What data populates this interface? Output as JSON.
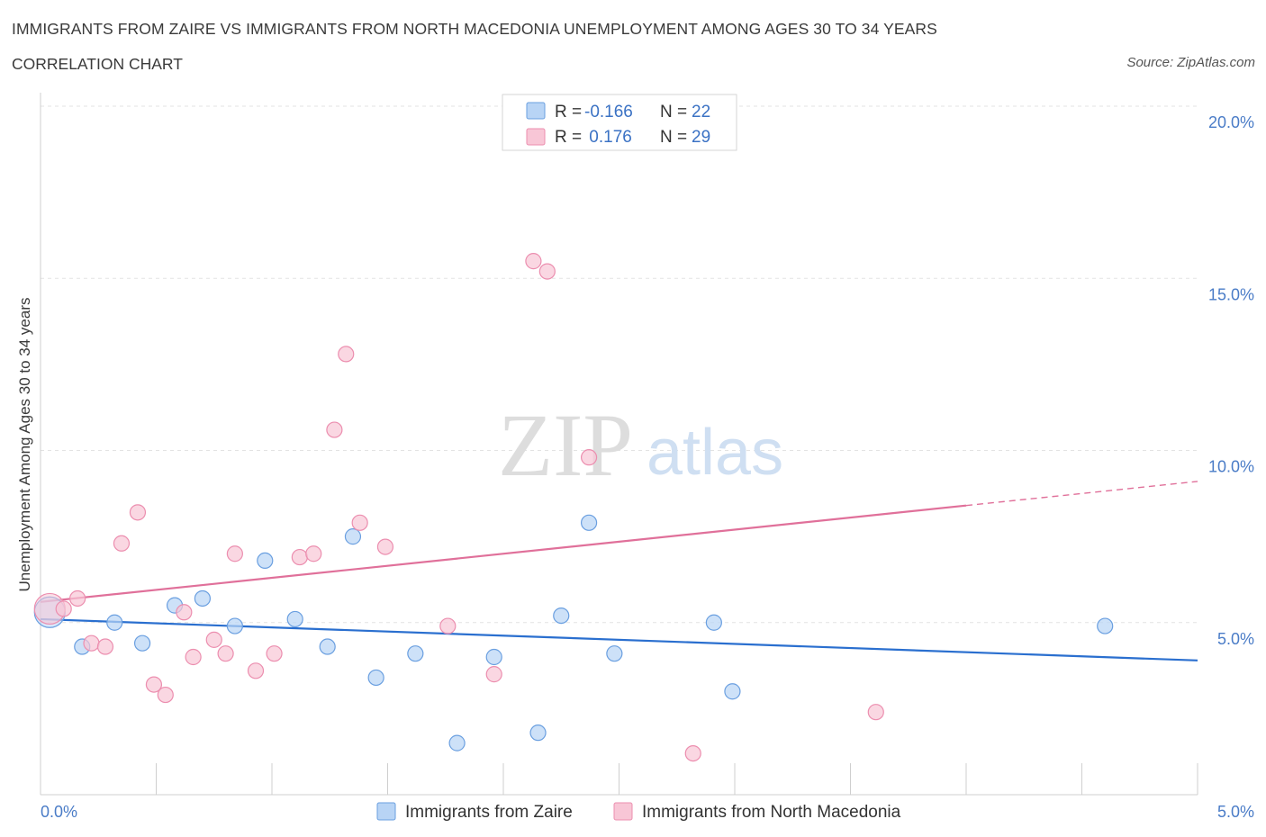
{
  "header": {
    "title": "IMMIGRANTS FROM ZAIRE VS IMMIGRANTS FROM NORTH MACEDONIA UNEMPLOYMENT AMONG AGES 30 TO 34 YEARS",
    "subtitle": "CORRELATION CHART",
    "source": "Source: ZipAtlas.com"
  },
  "watermark": {
    "zip": "ZIP",
    "atlas": "atlas"
  },
  "colors": {
    "zaire_fill": "#b8d4f5",
    "zaire_stroke": "#6a9fe0",
    "zaire_line": "#2a6fcf",
    "macedonia_fill": "#f8c6d6",
    "macedonia_stroke": "#ec8eaf",
    "macedonia_line": "#e0709a",
    "grid": "#e3e3e3",
    "tick_label": "#4a7cc7"
  },
  "legend": {
    "rows": [
      {
        "r_label": "R =",
        "r_value": "-0.166",
        "n_label": "N =",
        "n_value": "22"
      },
      {
        "r_label": "R =",
        "r_value": " 0.176",
        "n_label": "N =",
        "n_value": "29"
      }
    ]
  },
  "chart_data": {
    "type": "scatter",
    "title": "IMMIGRANTS FROM ZAIRE VS IMMIGRANTS FROM NORTH MACEDONIA UNEMPLOYMENT AMONG AGES 30 TO 34 YEARS",
    "xlabel": "",
    "ylabel": "Unemployment Among Ages 30 to 34 years",
    "xlim": [
      0,
      5
    ],
    "ylim": [
      0,
      20
    ],
    "x_tick_labels": [
      "0.0%",
      "5.0%"
    ],
    "y_ticks": [
      5,
      10,
      15,
      20
    ],
    "y_tick_labels": [
      "5.0%",
      "10.0%",
      "15.0%",
      "20.0%"
    ],
    "grid": true,
    "legend_position": "top-center",
    "series": [
      {
        "name": "Immigrants from Zaire",
        "r": -0.166,
        "n": 22,
        "trend": {
          "x": [
            0,
            5
          ],
          "y": [
            5.1,
            3.9
          ],
          "solid_until": 5
        },
        "points": [
          {
            "x": 0.04,
            "y": 5.3,
            "big": true
          },
          {
            "x": 0.18,
            "y": 4.3
          },
          {
            "x": 0.32,
            "y": 5.0
          },
          {
            "x": 0.44,
            "y": 4.4
          },
          {
            "x": 0.58,
            "y": 5.5
          },
          {
            "x": 0.7,
            "y": 5.7
          },
          {
            "x": 0.84,
            "y": 4.9
          },
          {
            "x": 0.97,
            "y": 6.8
          },
          {
            "x": 1.1,
            "y": 5.1
          },
          {
            "x": 1.24,
            "y": 4.3
          },
          {
            "x": 1.35,
            "y": 7.5
          },
          {
            "x": 1.45,
            "y": 3.4
          },
          {
            "x": 1.62,
            "y": 4.1
          },
          {
            "x": 1.8,
            "y": 1.5
          },
          {
            "x": 1.96,
            "y": 4.0
          },
          {
            "x": 2.15,
            "y": 1.8
          },
          {
            "x": 2.25,
            "y": 5.2
          },
          {
            "x": 2.37,
            "y": 7.9
          },
          {
            "x": 2.48,
            "y": 4.1
          },
          {
            "x": 2.91,
            "y": 5.0
          },
          {
            "x": 2.99,
            "y": 3.0
          },
          {
            "x": 4.6,
            "y": 4.9
          }
        ]
      },
      {
        "name": "Immigrants from North Macedonia",
        "r": 0.176,
        "n": 29,
        "trend": {
          "x": [
            0,
            5
          ],
          "y": [
            5.6,
            9.1
          ],
          "solid_until": 4.0
        },
        "points": [
          {
            "x": 0.04,
            "y": 5.4,
            "big": true
          },
          {
            "x": 0.1,
            "y": 5.4
          },
          {
            "x": 0.16,
            "y": 5.7
          },
          {
            "x": 0.22,
            "y": 4.4
          },
          {
            "x": 0.28,
            "y": 4.3
          },
          {
            "x": 0.35,
            "y": 7.3
          },
          {
            "x": 0.42,
            "y": 8.2
          },
          {
            "x": 0.49,
            "y": 3.2
          },
          {
            "x": 0.54,
            "y": 2.9
          },
          {
            "x": 0.62,
            "y": 5.3
          },
          {
            "x": 0.66,
            "y": 4.0
          },
          {
            "x": 0.75,
            "y": 4.5
          },
          {
            "x": 0.8,
            "y": 4.1
          },
          {
            "x": 0.84,
            "y": 7.0
          },
          {
            "x": 0.93,
            "y": 3.6
          },
          {
            "x": 1.01,
            "y": 4.1
          },
          {
            "x": 1.12,
            "y": 6.9
          },
          {
            "x": 1.18,
            "y": 7.0
          },
          {
            "x": 1.27,
            "y": 10.6
          },
          {
            "x": 1.32,
            "y": 12.8
          },
          {
            "x": 1.38,
            "y": 7.9
          },
          {
            "x": 1.49,
            "y": 7.2
          },
          {
            "x": 1.76,
            "y": 4.9
          },
          {
            "x": 1.96,
            "y": 3.5
          },
          {
            "x": 2.13,
            "y": 15.5
          },
          {
            "x": 2.19,
            "y": 15.2
          },
          {
            "x": 2.37,
            "y": 9.8
          },
          {
            "x": 2.82,
            "y": 1.2
          },
          {
            "x": 3.61,
            "y": 2.4
          }
        ]
      }
    ]
  }
}
